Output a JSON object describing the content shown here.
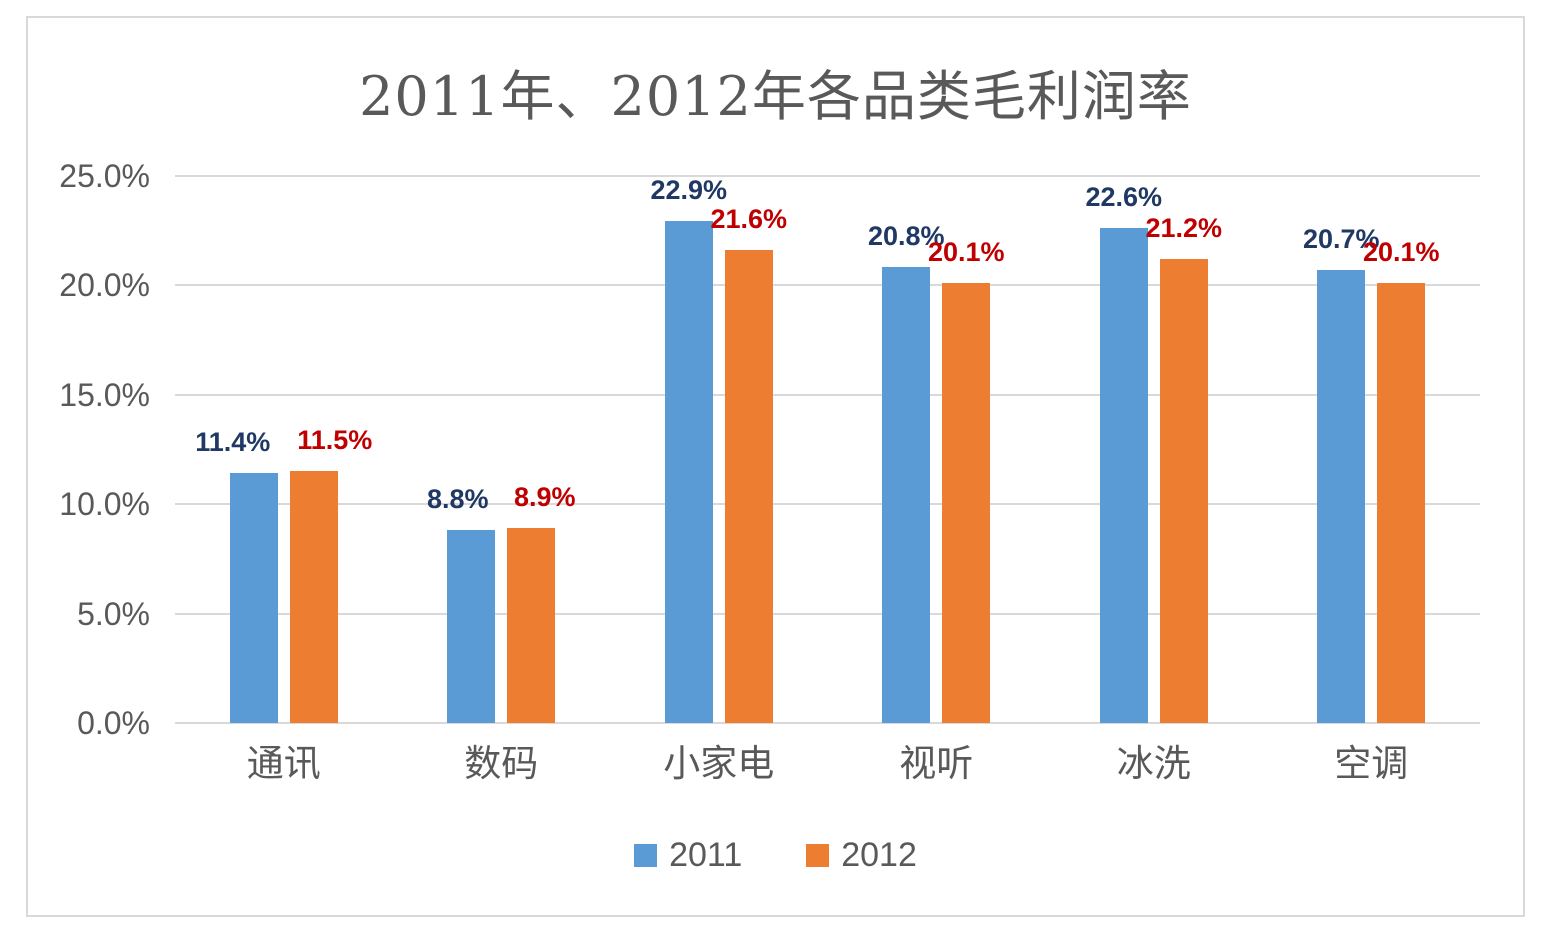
{
  "chart_data": {
    "type": "bar",
    "title": "2011年、2012年各品类毛利润率",
    "categories": [
      "通讯",
      "数码",
      "小家电",
      "视听",
      "冰洗",
      "空调"
    ],
    "series": [
      {
        "name": "2011",
        "color": "#5b9bd5",
        "label_color": "#1f3864",
        "values": [
          11.4,
          8.8,
          22.9,
          20.8,
          22.6,
          20.7
        ],
        "data_labels": [
          "11.4%",
          "8.8%",
          "22.9%",
          "20.8%",
          "22.6%",
          "20.7%"
        ]
      },
      {
        "name": "2012",
        "color": "#ed7d31",
        "label_color": "#c00000",
        "values": [
          11.5,
          8.9,
          21.6,
          20.1,
          21.2,
          20.1
        ],
        "data_labels": [
          "11.5%",
          "8.9%",
          "21.6%",
          "20.1%",
          "21.2%",
          "20.1%"
        ]
      }
    ],
    "y_axis": {
      "min": 0,
      "max": 25,
      "step": 5,
      "tick_values": [
        0,
        5,
        10,
        15,
        20,
        25
      ],
      "tick_labels": [
        "0.0%",
        "5.0%",
        "10.0%",
        "15.0%",
        "20.0%",
        "25.0%"
      ]
    },
    "legend": {
      "position": "bottom",
      "labels": [
        "2011",
        "2012"
      ]
    },
    "grid": true,
    "styles": {
      "grid_color": "#d9d9d9",
      "text_color": "#595959",
      "frame_border_color": "#d9d9d9",
      "background": "#ffffff"
    }
  }
}
